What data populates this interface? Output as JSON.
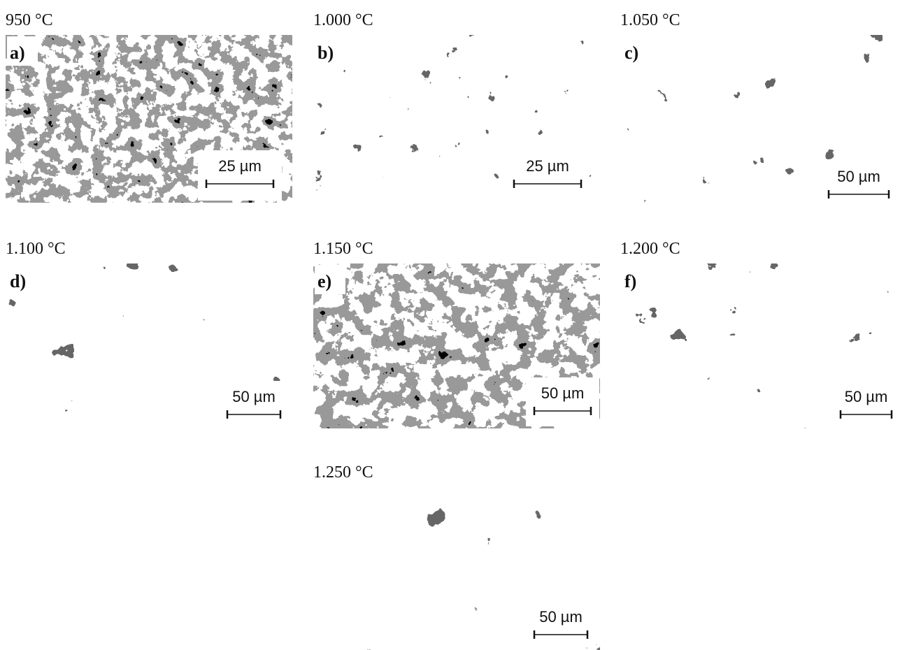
{
  "panels": [
    {
      "temperature": "950 °C",
      "letter": "a)",
      "scale": "25 µm"
    },
    {
      "temperature": "1.000 °C",
      "letter": "b)",
      "scale": "25 µm"
    },
    {
      "temperature": "1.050 °C",
      "letter": "c)",
      "scale": "50 µm"
    },
    {
      "temperature": "1.100 °C",
      "letter": "d)",
      "scale": "50 µm"
    },
    {
      "temperature": "1.150 °C",
      "letter": "e)",
      "scale": "50 µm"
    },
    {
      "temperature": "1.200 °C",
      "letter": "f)",
      "scale": "50 µm"
    },
    {
      "temperature": "1.250 °C",
      "scale": "50 µm"
    }
  ]
}
